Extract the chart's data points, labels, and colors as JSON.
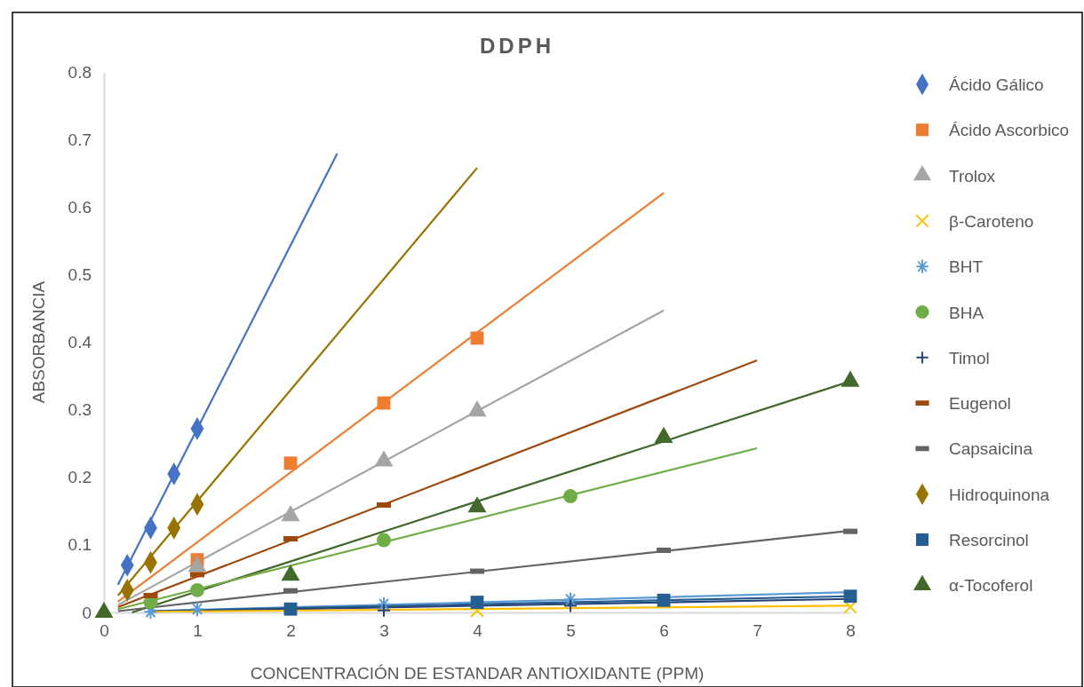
{
  "chart_data": {
    "type": "scatter",
    "title": "DDPH",
    "xlabel": "CONCENTRACIÓN DE ESTANDAR ANTIOXIDANTE (PPM)",
    "ylabel": "ABSORBANCIA",
    "xlim": [
      0,
      8
    ],
    "xticks": [
      0,
      1,
      2,
      3,
      4,
      5,
      6,
      7,
      8
    ],
    "ylim": [
      0,
      0.8
    ],
    "yticks": [
      0,
      0.1,
      0.2,
      0.3,
      0.4,
      0.5,
      0.6,
      0.7,
      0.8
    ],
    "grid": false,
    "legend": "right",
    "series": [
      {
        "type": "line",
        "color": "#4472c4",
        "x": [
          0.15,
          2.5
        ],
        "values": [
          0.041,
          0.679
        ],
        "marker": "none"
      },
      {
        "type": "line",
        "color": "#997300",
        "x": [
          0.15,
          4
        ],
        "values": [
          0.025,
          0.658
        ],
        "marker": "none"
      },
      {
        "type": "line",
        "color": "#ed7d31",
        "x": [
          0.15,
          6
        ],
        "values": [
          0.016,
          0.621
        ],
        "marker": "none"
      },
      {
        "type": "line",
        "color": "#a5a5a5",
        "x": [
          0.15,
          6
        ],
        "values": [
          0.011,
          0.447
        ],
        "marker": "none"
      },
      {
        "type": "line",
        "color": "#9e480e",
        "x": [
          0.15,
          7
        ],
        "values": [
          0.008,
          0.373
        ],
        "marker": "none"
      },
      {
        "type": "line",
        "color": "#43682b",
        "x": [
          0.3,
          8
        ],
        "values": [
          0,
          0.342
        ],
        "marker": "none"
      },
      {
        "type": "line",
        "color": "#70ad47",
        "x": [
          0.15,
          7
        ],
        "values": [
          0.005,
          0.243
        ],
        "marker": "none"
      },
      {
        "type": "line",
        "color": "#636363",
        "x": [
          0.15,
          8
        ],
        "values": [
          0.002,
          0.121
        ],
        "marker": "none"
      },
      {
        "type": "line",
        "color": "#5b9bd5",
        "x": [
          0.5,
          8
        ],
        "values": [
          0.002,
          0.03
        ],
        "marker": "none"
      },
      {
        "type": "line",
        "color": "#255e91",
        "x": [
          0.5,
          8
        ],
        "values": [
          0.002,
          0.024
        ],
        "marker": "none"
      },
      {
        "type": "line",
        "color": "#264478",
        "x": [
          0.5,
          8
        ],
        "values": [
          0.001,
          0.02
        ],
        "marker": "none"
      },
      {
        "type": "line",
        "color": "#ffc000",
        "x": [
          0.5,
          8
        ],
        "values": [
          0.001,
          0.01
        ],
        "marker": "none"
      },
      {
        "name": "Ácido Gálico",
        "color": "#4472c4",
        "marker": "diamond",
        "x": [
          0.25,
          0.5,
          0.75,
          1
        ],
        "values": [
          0.07,
          0.125,
          0.205,
          0.272
        ]
      },
      {
        "name": "Ácido Ascorbico",
        "color": "#ed7d31",
        "marker": "square",
        "x": [
          1,
          2,
          3,
          4
        ],
        "values": [
          0.078,
          0.221,
          0.31,
          0.406
        ]
      },
      {
        "name": "Trolox",
        "color": "#a5a5a5",
        "marker": "triangle",
        "x": [
          1,
          2,
          3,
          4
        ],
        "values": [
          0.068,
          0.143,
          0.224,
          0.298
        ]
      },
      {
        "name": "β-Caroteno",
        "color": "#ffc000",
        "marker": "x",
        "x": [
          4,
          8
        ],
        "values": [
          0.003,
          0.008
        ]
      },
      {
        "name": "BHT",
        "color": "#5b9bd5",
        "marker": "cross",
        "x": [
          0.5,
          1,
          3,
          5
        ],
        "values": [
          0.001,
          0.005,
          0.012,
          0.019
        ]
      },
      {
        "name": "BHA",
        "color": "#70ad47",
        "marker": "circle",
        "x": [
          0.5,
          1,
          3,
          5
        ],
        "values": [
          0.015,
          0.033,
          0.107,
          0.172
        ]
      },
      {
        "name": "Timol",
        "color": "#264478",
        "marker": "plus",
        "x": [
          3,
          5
        ],
        "values": [
          0.003,
          0.01
        ]
      },
      {
        "name": "Eugenol",
        "color": "#9e480e",
        "x": [
          0.5,
          1,
          2,
          3
        ],
        "values": [
          0.025,
          0.056,
          0.109,
          0.159
        ]
      },
      {
        "name": "Capsaicina",
        "color": "#636363",
        "x": [
          2,
          4,
          6,
          8
        ],
        "values": [
          0.032,
          0.061,
          0.092,
          0.12
        ]
      },
      {
        "name": "Hidroquinona",
        "color": "#997300",
        "marker": "diamond",
        "x": [
          0.25,
          0.5,
          0.75,
          1
        ],
        "values": [
          0.033,
          0.074,
          0.125,
          0.16
        ]
      },
      {
        "name": "Resorcinol",
        "color": "#255e91",
        "marker": "square",
        "x": [
          2,
          4,
          6,
          8
        ],
        "values": [
          0.005,
          0.015,
          0.018,
          0.024
        ]
      },
      {
        "name": "α-Tocoferol",
        "color": "#43682b",
        "marker": "triangle",
        "x": [
          0,
          2,
          4,
          6,
          8
        ],
        "values": [
          0,
          0.055,
          0.156,
          0.259,
          0.342
        ]
      }
    ]
  }
}
